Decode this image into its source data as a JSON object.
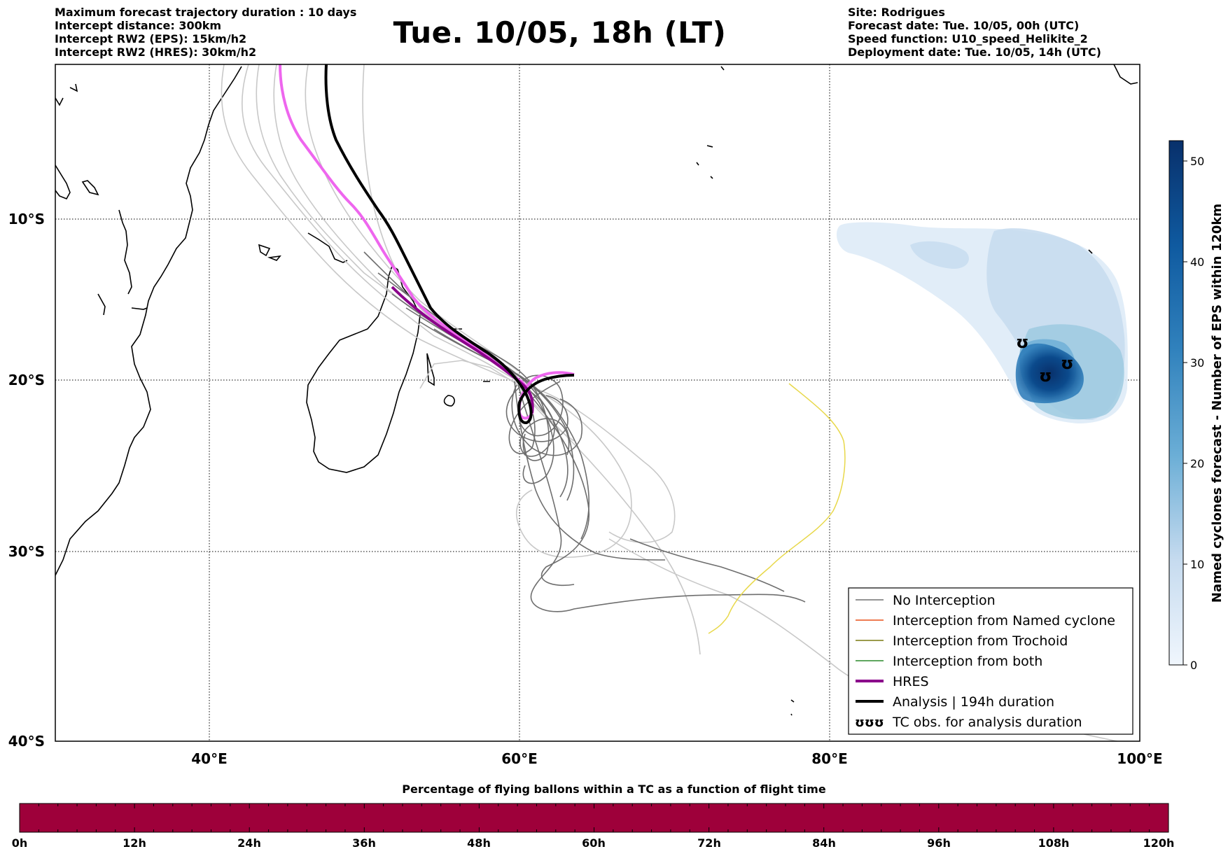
{
  "header": {
    "left": [
      "Maximum forecast trajectory duration : 10 days",
      "Intercept distance: 300km",
      "Intercept RW2 (EPS):  15km/h2",
      "Intercept RW2 (HRES): 30km/h2"
    ],
    "title": "Tue. 10/05, 18h (LT)",
    "right": [
      "Site: Rodrigues",
      "Forecast date: Tue. 10/05, 00h (UTC)",
      "Speed function: U10_speed_Helikite_2",
      "Deployment date: Tue. 10/05, 14h (UTC)"
    ]
  },
  "map": {
    "lat_labels": [
      "10°S",
      "20°S",
      "30°S",
      "40°S"
    ],
    "lon_labels": [
      "40°E",
      "60°E",
      "80°E",
      "100°E"
    ],
    "extent": {
      "lon_min": 30,
      "lon_max": 100,
      "lat_min": -40,
      "lat_max": -0.2
    }
  },
  "legend": {
    "items": [
      {
        "label": "No Interception",
        "color": "#707070"
      },
      {
        "label": "Interception from Named cyclone",
        "color": "#e8501a"
      },
      {
        "label": "Interception from Trochoid",
        "color": "#7a7a10"
      },
      {
        "label": "Interception from both",
        "color": "#2a8a2a"
      },
      {
        "label": "HRES",
        "color": "#8b008b"
      },
      {
        "label": "Analysis | 194h duration",
        "color": "#000000"
      },
      {
        "label": "TC obs. for analysis duration",
        "color": "#000000",
        "symbol": "ʊʊʊ"
      }
    ]
  },
  "colorbar": {
    "label": "Named cyclones forecast - Number of EPS within 120km",
    "ticks": [
      "0",
      "10",
      "20",
      "30",
      "40",
      "50"
    ],
    "min": 0,
    "max": 52
  },
  "timebar": {
    "title": "Percentage of flying ballons within a TC as a function of flight time",
    "ticks": [
      "0h",
      "12h",
      "24h",
      "36h",
      "48h",
      "60h",
      "72h",
      "84h",
      "96h",
      "108h",
      "120h"
    ],
    "fill_color": "#9e003a"
  }
}
